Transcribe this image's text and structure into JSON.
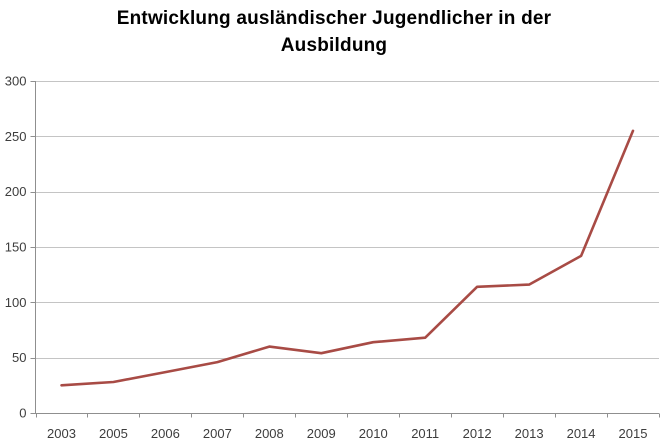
{
  "title_lines": [
    "Entwicklung ausländischer Jugendlicher in der",
    "Ausbildung"
  ],
  "colors": {
    "line": "#A84B45",
    "gridline": "#C4C4C4",
    "axis": "#8F8F8F",
    "tick_label": "#3D3D3D",
    "title_text": "#000000",
    "background": "#FFFFFF"
  },
  "chart_data": {
    "type": "line",
    "title": "Entwicklung ausländischer Jugendlicher in der Ausbildung",
    "categories": [
      "2003",
      "2005",
      "2006",
      "2007",
      "2008",
      "2009",
      "2010",
      "2011",
      "2012",
      "2013",
      "2014",
      "2015"
    ],
    "values": [
      25,
      28,
      37,
      46,
      60,
      54,
      64,
      68,
      114,
      116,
      142,
      255
    ],
    "xlabel": "",
    "ylabel": "",
    "ylim": [
      0,
      300
    ],
    "yticks": [
      0,
      50,
      100,
      150,
      200,
      250,
      300
    ],
    "grid": "horizontal",
    "legend": "none",
    "series_name": "Ausbildung",
    "series_color": "#A84B45"
  }
}
